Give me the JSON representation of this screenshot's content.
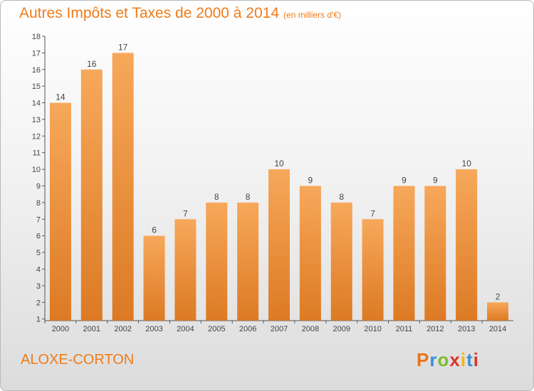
{
  "title": "Autres Impôts et Taxes de 2000 à 2014",
  "subtitle": "(en milliers d'€)",
  "town": "ALOXE-CORTON",
  "logo": {
    "text": "Proxiti",
    "letter_colors": [
      "#e8731a",
      "#3b8fd8",
      "#7dbb2f",
      "#d8352a",
      "#f1b51c",
      "#3b8fd8",
      "#d8352a"
    ]
  },
  "colors": {
    "title": "#ef7b1a",
    "bar_top": "#f7a85a",
    "bar_bottom": "#dc7a24",
    "axis": "#555555"
  },
  "chart_data": {
    "type": "bar",
    "title": "Autres Impôts et Taxes de 2000 à 2014",
    "subtitle": "(en milliers d'€)",
    "categories": [
      "2000",
      "2001",
      "2002",
      "2003",
      "2004",
      "2005",
      "2006",
      "2007",
      "2008",
      "2009",
      "2010",
      "2011",
      "2012",
      "2013",
      "2014"
    ],
    "values": [
      14,
      16,
      17,
      6,
      7,
      8,
      8,
      10,
      9,
      8,
      7,
      9,
      9,
      10,
      2
    ],
    "data_labels": [
      "14",
      "16",
      "17",
      "6",
      "7",
      "8",
      "8",
      "10",
      "9",
      "8",
      "7",
      "9",
      "9",
      "10",
      "2"
    ],
    "yticks": [
      "1",
      "2",
      "3",
      "4",
      "5",
      "6",
      "7",
      "8",
      "9",
      "10",
      "11",
      "12",
      "13",
      "14",
      "15",
      "16",
      "17",
      "18"
    ],
    "ylim": [
      0.9,
      18
    ],
    "grid": false,
    "legend": "none"
  }
}
